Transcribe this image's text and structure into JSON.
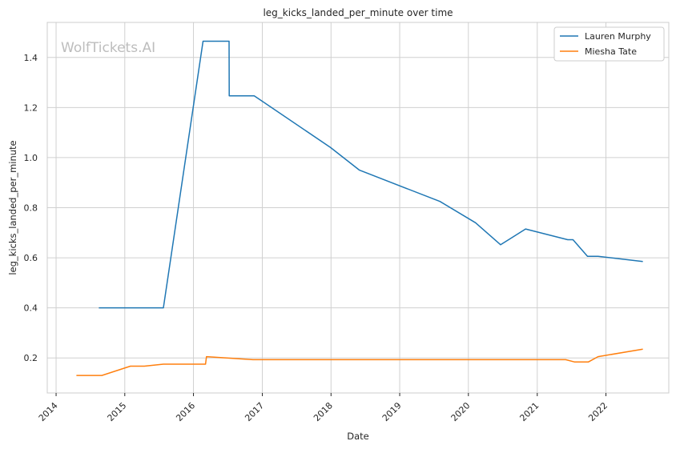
{
  "chart_data": {
    "type": "line",
    "title": "leg_kicks_landed_per_minute over time",
    "xlabel": "Date",
    "ylabel": "leg_kicks_landed_per_minute",
    "watermark": "WolfTickets.AI",
    "xlim": [
      "2013-11-15",
      "2022-12-01"
    ],
    "ylim": [
      0.06,
      1.54
    ],
    "x_ticks": [
      "2014",
      "2015",
      "2016",
      "2017",
      "2018",
      "2019",
      "2020",
      "2021",
      "2022"
    ],
    "y_ticks": [
      "0.2",
      "0.4",
      "0.6",
      "0.8",
      "1.0",
      "1.2",
      "1.4"
    ],
    "grid": true,
    "legend_position": "top-right",
    "series": [
      {
        "name": "Lauren Murphy",
        "color": "#1f77b4",
        "points": [
          [
            "2014-08-16",
            0.4
          ],
          [
            "2015-07-25",
            0.4
          ],
          [
            "2016-02-21",
            1.465
          ],
          [
            "2016-07-08",
            1.465
          ],
          [
            "2016-07-09",
            1.247
          ],
          [
            "2016-11-19",
            1.247
          ],
          [
            "2017-12-30",
            1.04
          ],
          [
            "2018-06-01",
            0.95
          ],
          [
            "2019-08-03",
            0.825
          ],
          [
            "2020-02-08",
            0.74
          ],
          [
            "2020-06-20",
            0.652
          ],
          [
            "2020-10-31",
            0.715
          ],
          [
            "2021-06-12",
            0.672
          ],
          [
            "2021-07-10",
            0.672
          ],
          [
            "2021-09-25",
            0.606
          ],
          [
            "2021-11-20",
            0.606
          ],
          [
            "2022-07-16",
            0.585
          ]
        ]
      },
      {
        "name": "Miesha Tate",
        "color": "#ff7f0e",
        "points": [
          [
            "2014-04-19",
            0.13
          ],
          [
            "2014-09-01",
            0.13
          ],
          [
            "2015-01-31",
            0.167
          ],
          [
            "2015-04-15",
            0.167
          ],
          [
            "2015-07-25",
            0.175
          ],
          [
            "2016-03-05",
            0.175
          ],
          [
            "2016-03-10",
            0.205
          ],
          [
            "2016-11-12",
            0.193
          ],
          [
            "2021-06-01",
            0.193
          ],
          [
            "2021-07-17",
            0.184
          ],
          [
            "2021-09-30",
            0.184
          ],
          [
            "2021-11-20",
            0.205
          ],
          [
            "2022-07-16",
            0.235
          ]
        ]
      }
    ]
  }
}
